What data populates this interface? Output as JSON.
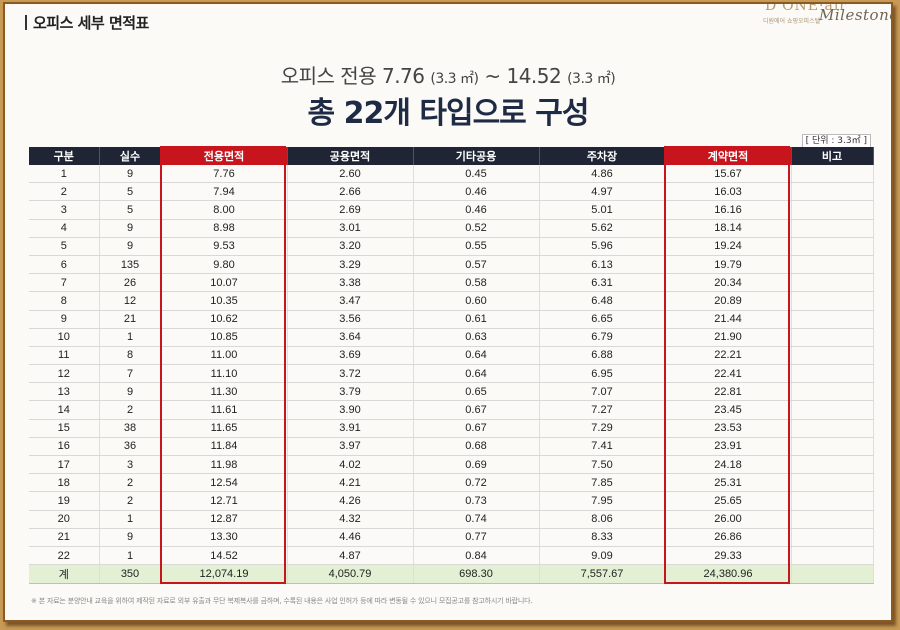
{
  "section_title": "오피스 세부 면적표",
  "logo": {
    "word": "D'ONE·air",
    "tag": "디원에어 쇼핑오피스텔",
    "script": "Milestone"
  },
  "subtitle": {
    "prefix": "오피스 전용 7.76",
    "unit1": "(3.3 ㎡)",
    "sep": " ~ 14.52",
    "unit2": "(3.3 ㎡)"
  },
  "headline": "총 22개 타입으로 구성",
  "unit_note": "[ 단위 : 3.3㎡ ]",
  "colors": {
    "header_bg": "#1f2535",
    "highlight": "#c8141c",
    "total_bg": "#e3f0d4"
  },
  "table": {
    "columns": [
      "구분",
      "실수",
      "전용면적",
      "공용면적",
      "기타공용",
      "주차장",
      "계약면적",
      "비고"
    ],
    "highlight_columns": [
      2,
      6
    ],
    "rows": [
      [
        "1",
        "9",
        "7.76",
        "2.60",
        "0.45",
        "4.86",
        "15.67",
        ""
      ],
      [
        "2",
        "5",
        "7.94",
        "2.66",
        "0.46",
        "4.97",
        "16.03",
        ""
      ],
      [
        "3",
        "5",
        "8.00",
        "2.69",
        "0.46",
        "5.01",
        "16.16",
        ""
      ],
      [
        "4",
        "9",
        "8.98",
        "3.01",
        "0.52",
        "5.62",
        "18.14",
        ""
      ],
      [
        "5",
        "9",
        "9.53",
        "3.20",
        "0.55",
        "5.96",
        "19.24",
        ""
      ],
      [
        "6",
        "135",
        "9.80",
        "3.29",
        "0.57",
        "6.13",
        "19.79",
        ""
      ],
      [
        "7",
        "26",
        "10.07",
        "3.38",
        "0.58",
        "6.31",
        "20.34",
        ""
      ],
      [
        "8",
        "12",
        "10.35",
        "3.47",
        "0.60",
        "6.48",
        "20.89",
        ""
      ],
      [
        "9",
        "21",
        "10.62",
        "3.56",
        "0.61",
        "6.65",
        "21.44",
        ""
      ],
      [
        "10",
        "1",
        "10.85",
        "3.64",
        "0.63",
        "6.79",
        "21.90",
        ""
      ],
      [
        "11",
        "8",
        "11.00",
        "3.69",
        "0.64",
        "6.88",
        "22.21",
        ""
      ],
      [
        "12",
        "7",
        "11.10",
        "3.72",
        "0.64",
        "6.95",
        "22.41",
        ""
      ],
      [
        "13",
        "9",
        "11.30",
        "3.79",
        "0.65",
        "7.07",
        "22.81",
        ""
      ],
      [
        "14",
        "2",
        "11.61",
        "3.90",
        "0.67",
        "7.27",
        "23.45",
        ""
      ],
      [
        "15",
        "38",
        "11.65",
        "3.91",
        "0.67",
        "7.29",
        "23.53",
        ""
      ],
      [
        "16",
        "36",
        "11.84",
        "3.97",
        "0.68",
        "7.41",
        "23.91",
        ""
      ],
      [
        "17",
        "3",
        "11.98",
        "4.02",
        "0.69",
        "7.50",
        "24.18",
        ""
      ],
      [
        "18",
        "2",
        "12.54",
        "4.21",
        "0.72",
        "7.85",
        "25.31",
        ""
      ],
      [
        "19",
        "2",
        "12.71",
        "4.26",
        "0.73",
        "7.95",
        "25.65",
        ""
      ],
      [
        "20",
        "1",
        "12.87",
        "4.32",
        "0.74",
        "8.06",
        "26.00",
        ""
      ],
      [
        "21",
        "9",
        "13.30",
        "4.46",
        "0.77",
        "8.33",
        "26.86",
        ""
      ],
      [
        "22",
        "1",
        "14.52",
        "4.87",
        "0.84",
        "9.09",
        "29.33",
        ""
      ]
    ],
    "total": [
      "계",
      "350",
      "12,074.19",
      "4,050.79",
      "698.30",
      "7,557.67",
      "24,380.96",
      ""
    ]
  },
  "footnote": "※ 본 자료는 분양안내 교육을 위하여 제작된 자료로 외부 유출과 무단 복제복사를 금하며, 수록된 내용은 사업 인허가 등에 따라 변동될 수 있으니 모집공고를 참고하시기 바랍니다."
}
